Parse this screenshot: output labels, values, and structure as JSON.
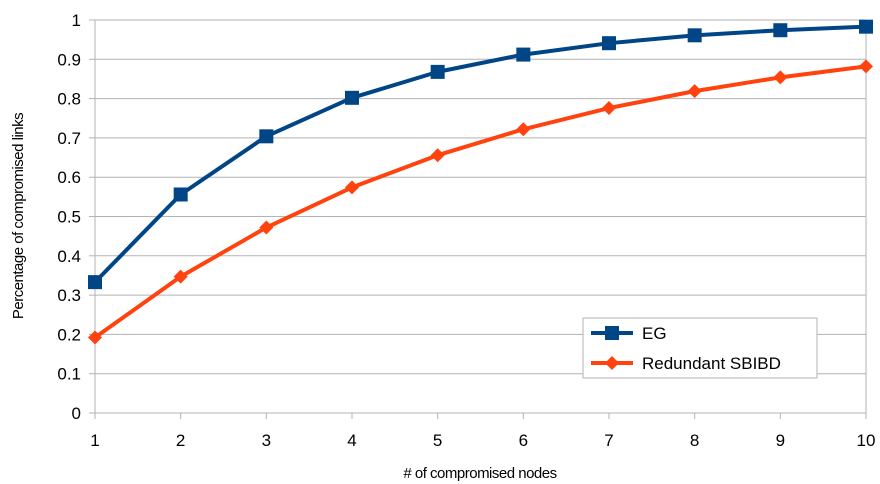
{
  "chart_data": {
    "type": "line",
    "xlabel": "# of compromised nodes",
    "ylabel": "Percentage of compromised links",
    "x": [
      1,
      2,
      3,
      4,
      5,
      6,
      7,
      8,
      9,
      10
    ],
    "xlim": [
      1,
      10
    ],
    "ylim": [
      0,
      1
    ],
    "y_ticks": [
      "0",
      "0.1",
      "0.2",
      "0.3",
      "0.4",
      "0.5",
      "0.6",
      "0.7",
      "0.8",
      "0.9",
      "1"
    ],
    "x_ticks": [
      "1",
      "2",
      "3",
      "4",
      "5",
      "6",
      "7",
      "8",
      "9",
      "10"
    ],
    "grid": true,
    "legend_position": "bottom-right",
    "series": [
      {
        "name": "EG",
        "color": "#004586",
        "marker": "square",
        "values": [
          0.333,
          0.556,
          0.704,
          0.802,
          0.868,
          0.912,
          0.941,
          0.961,
          0.974,
          0.983
        ]
      },
      {
        "name": "Redundant SBIBD",
        "color": "#ff420e",
        "marker": "diamond",
        "values": [
          0.192,
          0.347,
          0.472,
          0.574,
          0.656,
          0.722,
          0.776,
          0.819,
          0.854,
          0.882
        ]
      }
    ]
  }
}
